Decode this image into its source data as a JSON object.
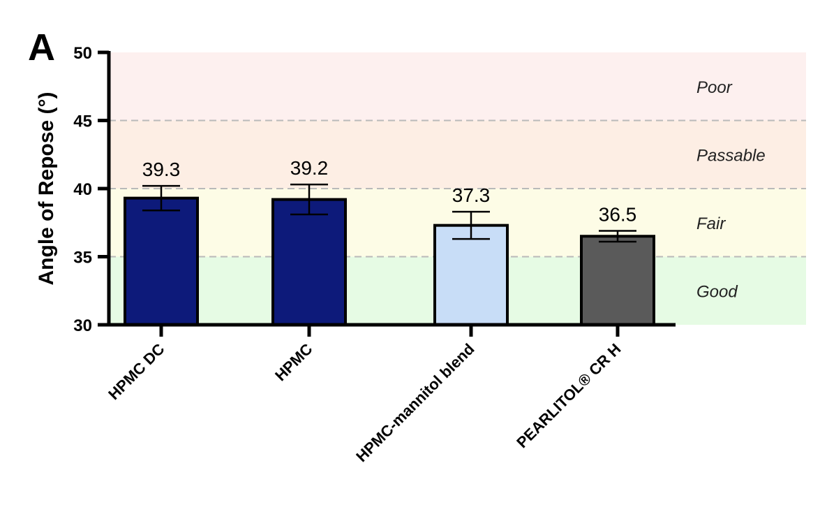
{
  "panel_label": "A",
  "chart_data": {
    "type": "bar",
    "title": "",
    "xlabel": "",
    "ylabel": "Angle of Repose (°)",
    "ylim": [
      30,
      50
    ],
    "yticks": [
      30,
      35,
      40,
      45,
      50
    ],
    "grid": false,
    "categories": [
      "HPMC DC",
      "HPMC",
      "HPMC-mannitol blend",
      "PEARLITOL® CR H"
    ],
    "values": [
      39.3,
      39.2,
      37.3,
      36.5
    ],
    "data_labels": [
      "39.3",
      "39.2",
      "37.3",
      "36.5"
    ],
    "error": [
      0.9,
      1.1,
      1.0,
      0.4
    ],
    "bar_colors": [
      "#0d1a7a",
      "#0d1a7a",
      "#c8ddf7",
      "#5a5a5a"
    ],
    "zones": [
      {
        "label": "Good",
        "from": 30,
        "to": 35,
        "color": "#e6fbe4"
      },
      {
        "label": "Fair",
        "from": 35,
        "to": 40,
        "color": "#fdfce6"
      },
      {
        "label": "Passable",
        "from": 40,
        "to": 45,
        "color": "#fdeee4"
      },
      {
        "label": "Poor",
        "from": 45,
        "to": 50,
        "color": "#fdf0ef"
      }
    ],
    "thresholds": [
      35,
      40,
      45
    ]
  }
}
